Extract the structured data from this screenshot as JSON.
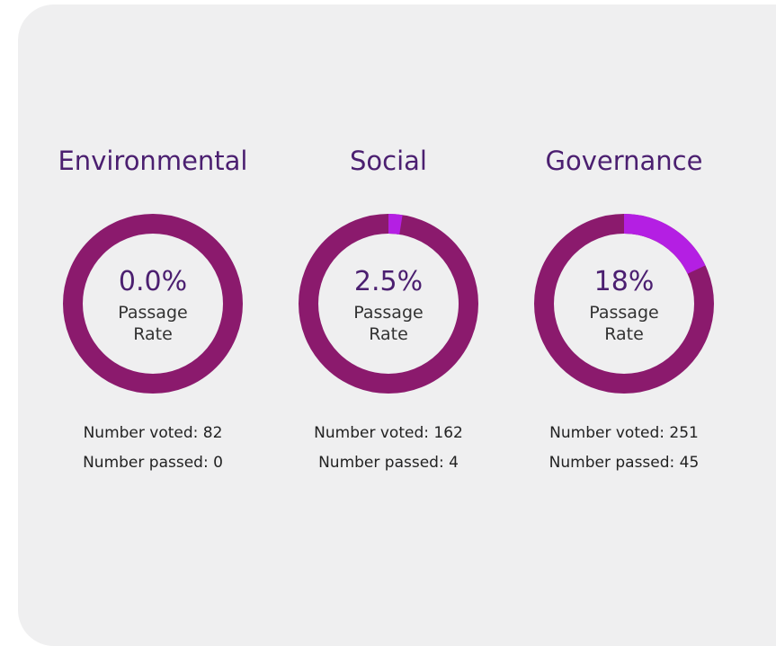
{
  "chart_data": [
    {
      "type": "donut",
      "title": "Environmental",
      "values": [
        0.0
      ],
      "value_labels": [
        "0.0%"
      ],
      "center_label": "Passage Rate",
      "notes": [
        "Number voted: 82",
        "Number passed: 0"
      ],
      "colors": [
        "#b41fe3",
        "#8b1a6d"
      ]
    },
    {
      "type": "donut",
      "title": "Social",
      "values": [
        2.5
      ],
      "value_labels": [
        "2.5%"
      ],
      "center_label": "Passage Rate",
      "notes": [
        "Number voted: 162",
        "Number passed: 4"
      ],
      "colors": [
        "#b41fe3",
        "#8b1a6d"
      ]
    },
    {
      "type": "donut",
      "title": "Governance",
      "values": [
        18
      ],
      "value_labels": [
        "18%"
      ],
      "center_label": "Passage Rate",
      "notes": [
        "Number voted: 251",
        "Number passed: 45"
      ],
      "colors": [
        "#b41fe3",
        "#8b1a6d"
      ]
    }
  ]
}
